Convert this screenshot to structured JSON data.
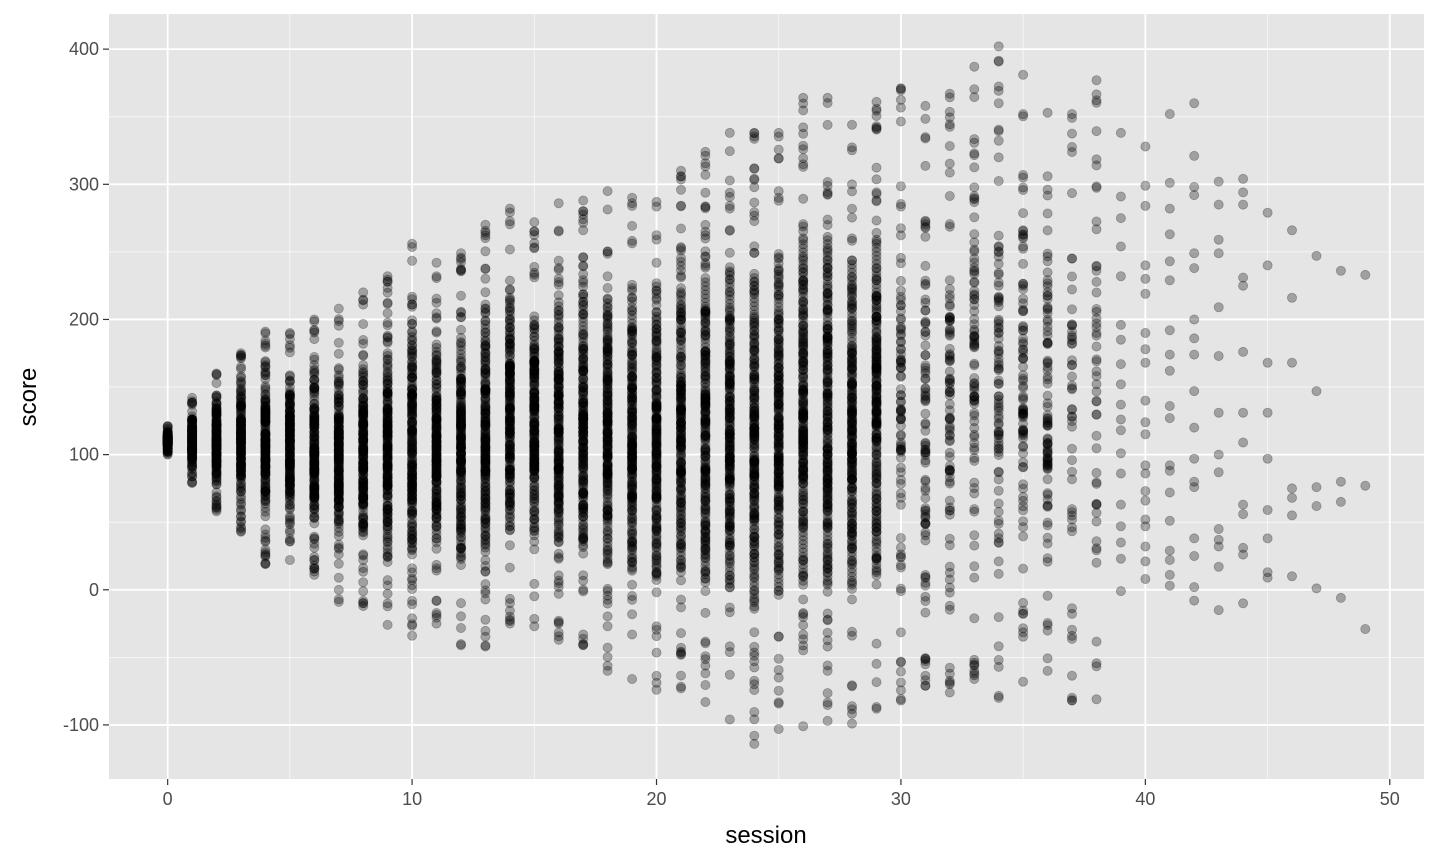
{
  "chart_data": {
    "type": "scatter",
    "title": "",
    "xlabel": "session",
    "ylabel": "score",
    "xlim": [
      -2.4,
      51.4
    ],
    "ylim": [
      -140,
      426
    ],
    "x_ticks": [
      0,
      10,
      20,
      30,
      40,
      50
    ],
    "y_ticks": [
      -100,
      0,
      100,
      200,
      300,
      400
    ],
    "x_tick_labels": [
      "0",
      "10",
      "20",
      "30",
      "40",
      "50"
    ],
    "y_tick_labels": [
      "-100",
      "0",
      "100",
      "200",
      "300",
      "400"
    ],
    "grid": true,
    "legend": "none",
    "point_color": "#000000",
    "point_alpha": 0.3,
    "panel_background": "#e5e5e5",
    "grid_color": "#ffffff",
    "note": "Vertical stripes of points at each integer session 0-49; spread of score widens with session. Dense columns summarised by range; sparse points listed individually.",
    "columns": [
      {
        "x": 0,
        "ymin": 100,
        "ymax": 121,
        "density": "dense"
      },
      {
        "x": 1,
        "ymin": 79,
        "ymax": 142,
        "density": "dense"
      },
      {
        "x": 2,
        "ymin": 58,
        "ymax": 160,
        "density": "dense"
      },
      {
        "x": 3,
        "ymin": 43,
        "ymax": 175,
        "density": "dense"
      },
      {
        "x": 4,
        "ymin": 19,
        "ymax": 191,
        "density": "dense"
      },
      {
        "x": 5,
        "ymin": 22,
        "ymax": 190,
        "density": "dense"
      },
      {
        "x": 6,
        "ymin": 11,
        "ymax": 200,
        "density": "dense"
      },
      {
        "x": 7,
        "ymin": -9,
        "ymax": 208,
        "density": "dense"
      },
      {
        "x": 8,
        "ymin": -12,
        "ymax": 220,
        "density": "dense"
      },
      {
        "x": 9,
        "ymin": -26,
        "ymax": 232,
        "density": "dense"
      },
      {
        "x": 10,
        "ymin": -34,
        "ymax": 256,
        "density": "dense"
      },
      {
        "x": 11,
        "ymin": -25,
        "ymax": 242,
        "density": "dense"
      },
      {
        "x": 12,
        "ymin": -41,
        "ymax": 249,
        "density": "dense"
      },
      {
        "x": 13,
        "ymin": -42,
        "ymax": 270,
        "density": "dense"
      },
      {
        "x": 14,
        "ymin": -25,
        "ymax": 282,
        "density": "dense"
      },
      {
        "x": 15,
        "ymin": -27,
        "ymax": 272,
        "density": "dense"
      },
      {
        "x": 16,
        "ymin": -37,
        "ymax": 286,
        "density": "dense"
      },
      {
        "x": 17,
        "ymin": -41,
        "ymax": 288,
        "density": "dense"
      },
      {
        "x": 18,
        "ymin": -60,
        "ymax": 295,
        "density": "dense"
      },
      {
        "x": 19,
        "ymin": -66,
        "ymax": 290,
        "density": "dense"
      },
      {
        "x": 20,
        "ymin": -74,
        "ymax": 287,
        "density": "dense"
      },
      {
        "x": 21,
        "ymin": -73,
        "ymax": 310,
        "density": "dense"
      },
      {
        "x": 22,
        "ymin": -83,
        "ymax": 324,
        "density": "dense"
      },
      {
        "x": 23,
        "ymin": -96,
        "ymax": 338,
        "density": "dense"
      },
      {
        "x": 24,
        "ymin": -114,
        "ymax": 338,
        "density": "dense"
      },
      {
        "x": 25,
        "ymin": -103,
        "ymax": 338,
        "density": "dense"
      },
      {
        "x": 26,
        "ymin": -101,
        "ymax": 364,
        "density": "dense"
      },
      {
        "x": 27,
        "ymin": -97,
        "ymax": 364,
        "density": "dense"
      },
      {
        "x": 28,
        "ymin": -99,
        "ymax": 344,
        "density": "dense"
      },
      {
        "x": 29,
        "ymin": -88,
        "ymax": 361,
        "density": "dense"
      },
      {
        "x": 30,
        "ymin": -82,
        "ymax": 371,
        "density": "medium"
      },
      {
        "x": 31,
        "ymin": -71,
        "ymax": 358,
        "density": "medium"
      },
      {
        "x": 32,
        "ymin": -76,
        "ymax": 367,
        "density": "medium"
      },
      {
        "x": 33,
        "ymin": -66,
        "ymax": 387,
        "density": "medium"
      },
      {
        "x": 34,
        "ymin": -80,
        "ymax": 402,
        "density": "medium"
      },
      {
        "x": 35,
        "ymin": -68,
        "ymax": 381,
        "density": "medium"
      },
      {
        "x": 36,
        "ymin": -60,
        "ymax": 353,
        "density": "medium"
      },
      {
        "x": 37,
        "ymin": -82,
        "ymax": 352,
        "density": "sparse"
      },
      {
        "x": 38,
        "ymin": -81,
        "ymax": 377,
        "density": "sparse"
      }
    ],
    "points": [
      {
        "x": 39,
        "y": 338
      },
      {
        "x": 39,
        "y": 291
      },
      {
        "x": 39,
        "y": 275
      },
      {
        "x": 39,
        "y": 254
      },
      {
        "x": 39,
        "y": 232
      },
      {
        "x": 39,
        "y": 196
      },
      {
        "x": 39,
        "y": 185
      },
      {
        "x": 39,
        "y": 167
      },
      {
        "x": 39,
        "y": 152
      },
      {
        "x": 39,
        "y": 137
      },
      {
        "x": 39,
        "y": 126
      },
      {
        "x": 39,
        "y": 118
      },
      {
        "x": 39,
        "y": 101
      },
      {
        "x": 39,
        "y": 86
      },
      {
        "x": 39,
        "y": 63
      },
      {
        "x": 39,
        "y": 47
      },
      {
        "x": 39,
        "y": 35
      },
      {
        "x": 39,
        "y": 23
      },
      {
        "x": 39,
        "y": -1
      },
      {
        "x": 40,
        "y": 328
      },
      {
        "x": 40,
        "y": 299
      },
      {
        "x": 40,
        "y": 284
      },
      {
        "x": 40,
        "y": 240
      },
      {
        "x": 40,
        "y": 230
      },
      {
        "x": 40,
        "y": 219
      },
      {
        "x": 40,
        "y": 190
      },
      {
        "x": 40,
        "y": 178
      },
      {
        "x": 40,
        "y": 168
      },
      {
        "x": 40,
        "y": 140
      },
      {
        "x": 40,
        "y": 124
      },
      {
        "x": 40,
        "y": 115
      },
      {
        "x": 40,
        "y": 92
      },
      {
        "x": 40,
        "y": 86
      },
      {
        "x": 40,
        "y": 73
      },
      {
        "x": 40,
        "y": 66
      },
      {
        "x": 40,
        "y": 52
      },
      {
        "x": 40,
        "y": 47
      },
      {
        "x": 40,
        "y": 32
      },
      {
        "x": 40,
        "y": 21
      },
      {
        "x": 40,
        "y": 8
      },
      {
        "x": 41,
        "y": 352
      },
      {
        "x": 41,
        "y": 301
      },
      {
        "x": 41,
        "y": 282
      },
      {
        "x": 41,
        "y": 263
      },
      {
        "x": 41,
        "y": 243
      },
      {
        "x": 41,
        "y": 229
      },
      {
        "x": 41,
        "y": 192
      },
      {
        "x": 41,
        "y": 174
      },
      {
        "x": 41,
        "y": 162
      },
      {
        "x": 41,
        "y": 136
      },
      {
        "x": 41,
        "y": 127
      },
      {
        "x": 41,
        "y": 92
      },
      {
        "x": 41,
        "y": 88
      },
      {
        "x": 41,
        "y": 72
      },
      {
        "x": 41,
        "y": 51
      },
      {
        "x": 41,
        "y": 29
      },
      {
        "x": 41,
        "y": 22
      },
      {
        "x": 41,
        "y": 11
      },
      {
        "x": 41,
        "y": 3
      },
      {
        "x": 42,
        "y": 360
      },
      {
        "x": 42,
        "y": 321
      },
      {
        "x": 42,
        "y": 298
      },
      {
        "x": 42,
        "y": 292
      },
      {
        "x": 42,
        "y": 249
      },
      {
        "x": 42,
        "y": 238
      },
      {
        "x": 42,
        "y": 200
      },
      {
        "x": 42,
        "y": 186
      },
      {
        "x": 42,
        "y": 174
      },
      {
        "x": 42,
        "y": 147
      },
      {
        "x": 42,
        "y": 120
      },
      {
        "x": 42,
        "y": 97
      },
      {
        "x": 42,
        "y": 80
      },
      {
        "x": 42,
        "y": 76
      },
      {
        "x": 42,
        "y": 38
      },
      {
        "x": 42,
        "y": 25
      },
      {
        "x": 42,
        "y": 2
      },
      {
        "x": 42,
        "y": -8
      },
      {
        "x": 43,
        "y": 302
      },
      {
        "x": 43,
        "y": 285
      },
      {
        "x": 43,
        "y": 259
      },
      {
        "x": 43,
        "y": 249
      },
      {
        "x": 43,
        "y": 209
      },
      {
        "x": 43,
        "y": 173
      },
      {
        "x": 43,
        "y": 131
      },
      {
        "x": 43,
        "y": 100
      },
      {
        "x": 43,
        "y": 87
      },
      {
        "x": 43,
        "y": 45
      },
      {
        "x": 43,
        "y": 37
      },
      {
        "x": 43,
        "y": 32
      },
      {
        "x": 43,
        "y": 17
      },
      {
        "x": 43,
        "y": -15
      },
      {
        "x": 44,
        "y": 304
      },
      {
        "x": 44,
        "y": 294
      },
      {
        "x": 44,
        "y": 285
      },
      {
        "x": 44,
        "y": 231
      },
      {
        "x": 44,
        "y": 225
      },
      {
        "x": 44,
        "y": 176
      },
      {
        "x": 44,
        "y": 131
      },
      {
        "x": 44,
        "y": 109
      },
      {
        "x": 44,
        "y": 63
      },
      {
        "x": 44,
        "y": 56
      },
      {
        "x": 44,
        "y": 31
      },
      {
        "x": 44,
        "y": 26
      },
      {
        "x": 44,
        "y": -10
      },
      {
        "x": 45,
        "y": 279
      },
      {
        "x": 45,
        "y": 240
      },
      {
        "x": 45,
        "y": 168
      },
      {
        "x": 45,
        "y": 131
      },
      {
        "x": 45,
        "y": 97
      },
      {
        "x": 45,
        "y": 59
      },
      {
        "x": 45,
        "y": 38
      },
      {
        "x": 45,
        "y": 13
      },
      {
        "x": 45,
        "y": 9
      },
      {
        "x": 46,
        "y": 266
      },
      {
        "x": 46,
        "y": 216
      },
      {
        "x": 46,
        "y": 168
      },
      {
        "x": 46,
        "y": 75
      },
      {
        "x": 46,
        "y": 68
      },
      {
        "x": 46,
        "y": 55
      },
      {
        "x": 46,
        "y": 10
      },
      {
        "x": 47,
        "y": 247
      },
      {
        "x": 47,
        "y": 147
      },
      {
        "x": 47,
        "y": 76
      },
      {
        "x": 47,
        "y": 62
      },
      {
        "x": 47,
        "y": 1
      },
      {
        "x": 48,
        "y": 236
      },
      {
        "x": 48,
        "y": 80
      },
      {
        "x": 48,
        "y": 65
      },
      {
        "x": 48,
        "y": -6
      },
      {
        "x": 49,
        "y": 233
      },
      {
        "x": 49,
        "y": 77
      },
      {
        "x": 49,
        "y": -29
      }
    ]
  }
}
